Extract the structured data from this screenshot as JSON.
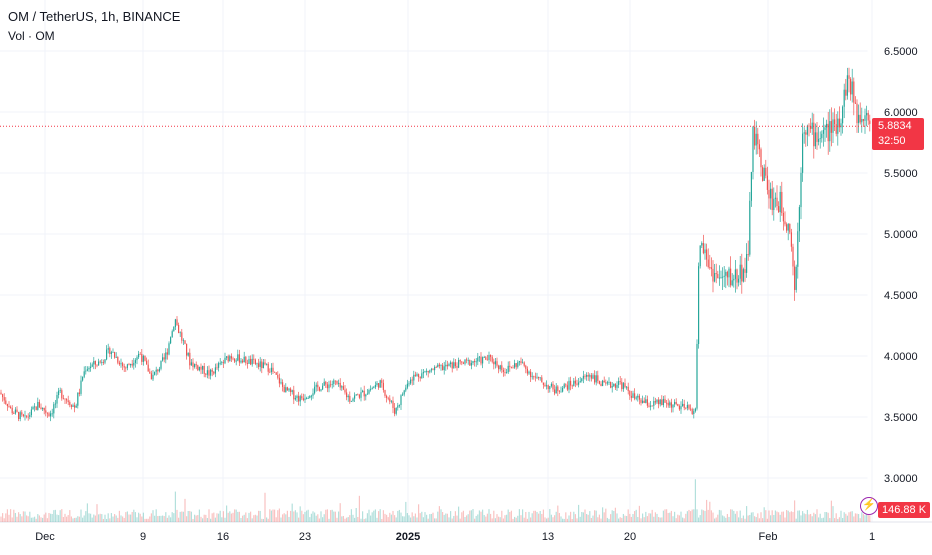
{
  "legend": {
    "title": "OM / TetherUS, 1h, BINANCE",
    "volume_label": "Vol · OM"
  },
  "price_tag": {
    "price": "5.8834",
    "countdown": "32:50"
  },
  "volume_tag": "146.88 K",
  "colors": {
    "up": "#26a69a",
    "down": "#ef5350",
    "current_price": "#f23645",
    "grid": "#f0f3fa",
    "text": "#131722"
  },
  "chart_data": {
    "type": "candlestick",
    "title": "OM / TetherUS, 1h, BINANCE",
    "ylim": [
      2.75,
      6.6
    ],
    "y_ticks": [
      6.5,
      6.0,
      5.5,
      5.0,
      4.5,
      4.0,
      3.5,
      3.0
    ],
    "y_tick_labels": [
      "6.5000",
      "6.0000",
      "5.5000",
      "5.0000",
      "4.5000",
      "4.0000",
      "3.5000",
      "3.0000"
    ],
    "x_tick_labels": [
      "Dec",
      "9",
      "16",
      "23",
      "2025",
      "13",
      "20",
      "Feb",
      "1"
    ],
    "current_price": 5.8834,
    "price_path": [
      {
        "x": 0,
        "price": 3.7
      },
      {
        "x": 12,
        "price": 3.55
      },
      {
        "x": 25,
        "price": 3.48
      },
      {
        "x": 38,
        "price": 3.6
      },
      {
        "x": 50,
        "price": 3.52
      },
      {
        "x": 60,
        "price": 3.7
      },
      {
        "x": 75,
        "price": 3.58
      },
      {
        "x": 85,
        "price": 3.9
      },
      {
        "x": 100,
        "price": 3.95
      },
      {
        "x": 110,
        "price": 4.05
      },
      {
        "x": 125,
        "price": 3.9
      },
      {
        "x": 140,
        "price": 4.02
      },
      {
        "x": 152,
        "price": 3.82
      },
      {
        "x": 165,
        "price": 3.98
      },
      {
        "x": 175,
        "price": 4.3
      },
      {
        "x": 190,
        "price": 3.95
      },
      {
        "x": 210,
        "price": 3.85
      },
      {
        "x": 230,
        "price": 4.0
      },
      {
        "x": 250,
        "price": 3.95
      },
      {
        "x": 270,
        "price": 3.9
      },
      {
        "x": 285,
        "price": 3.72
      },
      {
        "x": 300,
        "price": 3.65
      },
      {
        "x": 320,
        "price": 3.75
      },
      {
        "x": 335,
        "price": 3.78
      },
      {
        "x": 350,
        "price": 3.65
      },
      {
        "x": 365,
        "price": 3.7
      },
      {
        "x": 380,
        "price": 3.78
      },
      {
        "x": 395,
        "price": 3.55
      },
      {
        "x": 410,
        "price": 3.82
      },
      {
        "x": 430,
        "price": 3.88
      },
      {
        "x": 450,
        "price": 3.92
      },
      {
        "x": 470,
        "price": 3.95
      },
      {
        "x": 490,
        "price": 3.98
      },
      {
        "x": 505,
        "price": 3.88
      },
      {
        "x": 520,
        "price": 3.95
      },
      {
        "x": 535,
        "price": 3.82
      },
      {
        "x": 555,
        "price": 3.72
      },
      {
        "x": 575,
        "price": 3.78
      },
      {
        "x": 590,
        "price": 3.85
      },
      {
        "x": 605,
        "price": 3.75
      },
      {
        "x": 620,
        "price": 3.78
      },
      {
        "x": 635,
        "price": 3.65
      },
      {
        "x": 650,
        "price": 3.6
      },
      {
        "x": 665,
        "price": 3.62
      },
      {
        "x": 680,
        "price": 3.58
      },
      {
        "x": 695,
        "price": 3.55
      },
      {
        "x": 700,
        "price": 4.95
      },
      {
        "x": 710,
        "price": 4.72
      },
      {
        "x": 720,
        "price": 4.62
      },
      {
        "x": 735,
        "price": 4.65
      },
      {
        "x": 748,
        "price": 4.75
      },
      {
        "x": 752,
        "price": 5.85
      },
      {
        "x": 760,
        "price": 5.62
      },
      {
        "x": 770,
        "price": 5.3
      },
      {
        "x": 780,
        "price": 5.25
      },
      {
        "x": 790,
        "price": 5.05
      },
      {
        "x": 795,
        "price": 4.55
      },
      {
        "x": 803,
        "price": 5.9
      },
      {
        "x": 815,
        "price": 5.8
      },
      {
        "x": 830,
        "price": 5.85
      },
      {
        "x": 840,
        "price": 5.95
      },
      {
        "x": 848,
        "price": 6.3
      },
      {
        "x": 858,
        "price": 5.95
      },
      {
        "x": 866,
        "price": 6.05
      },
      {
        "x": 872,
        "price": 5.88
      }
    ],
    "volume_spikes": [
      {
        "x": 152,
        "rel": 0.92
      },
      {
        "x": 175,
        "rel": 0.55
      },
      {
        "x": 265,
        "rel": 0.65
      },
      {
        "x": 695,
        "rel": 0.95
      },
      {
        "x": 710,
        "rel": 0.45
      },
      {
        "x": 752,
        "rel": 0.55
      },
      {
        "x": 795,
        "rel": 0.48
      },
      {
        "x": 848,
        "rel": 0.35
      },
      {
        "x": 520,
        "rel": 0.25
      }
    ]
  }
}
